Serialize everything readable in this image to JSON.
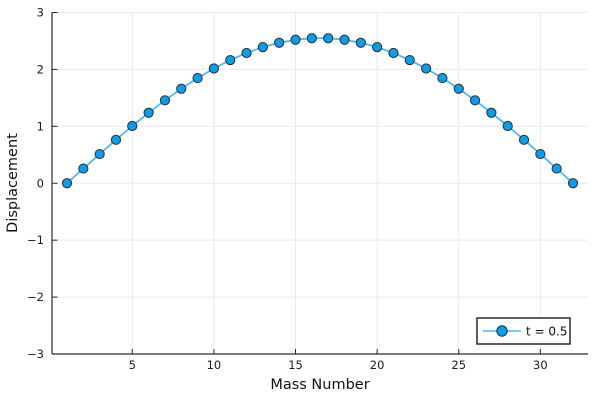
{
  "chart_data": {
    "type": "line",
    "title": "",
    "xlabel": "Mass Number",
    "ylabel": "Displacement",
    "x": [
      1,
      2,
      3,
      4,
      5,
      6,
      7,
      8,
      9,
      10,
      11,
      12,
      13,
      14,
      15,
      16,
      17,
      18,
      19,
      20,
      21,
      22,
      23,
      24,
      25,
      26,
      27,
      28,
      29,
      30,
      31,
      32
    ],
    "series": [
      {
        "name": "t = 0.5",
        "values": [
          0.0,
          0.258,
          0.513,
          0.763,
          1.006,
          1.238,
          1.457,
          1.661,
          1.848,
          2.016,
          2.164,
          2.289,
          2.391,
          2.469,
          2.521,
          2.547,
          2.547,
          2.521,
          2.469,
          2.391,
          2.289,
          2.164,
          2.016,
          1.848,
          1.661,
          1.457,
          1.238,
          1.006,
          0.763,
          0.513,
          0.258,
          0.0
        ]
      }
    ],
    "xlim": [
      0.08,
      32.92
    ],
    "ylim": [
      -3,
      3
    ],
    "xticks": [
      5,
      10,
      15,
      20,
      25,
      30
    ],
    "yticks": [
      -3,
      -2,
      -1,
      0,
      1,
      2,
      3
    ],
    "grid": true,
    "legend_position": "bottom-right",
    "colors": {
      "line": "#4fb6f0",
      "marker_fill": "#0e9be8",
      "marker_stroke": "#2e2e2e",
      "grid": "#e9e9e9",
      "axis": "#2a2a2a",
      "legend_border": "#1a1a1a",
      "legend_bg": "#ffffff",
      "background": "#ffffff"
    }
  }
}
